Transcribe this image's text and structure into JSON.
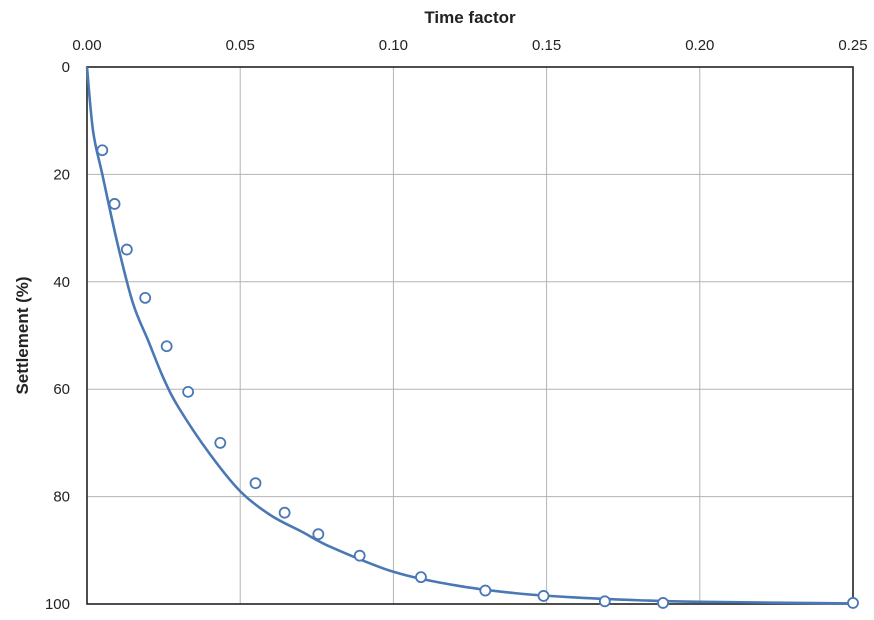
{
  "chart_data": {
    "type": "scatter",
    "title": "",
    "xlabel": "Time factor",
    "ylabel": "Settlement (%)",
    "x_axis_position": "top",
    "y_axis_inverted": true,
    "xlim": [
      0,
      0.25
    ],
    "ylim": [
      0,
      100
    ],
    "xticks": [
      0.0,
      0.05,
      0.1,
      0.15,
      0.2,
      0.25
    ],
    "xtick_labels": [
      "0.00",
      "0.05",
      "0.10",
      "0.15",
      "0.20",
      "0.25"
    ],
    "yticks": [
      0,
      20,
      40,
      60,
      80,
      100
    ],
    "ytick_labels": [
      "0",
      "20",
      "40",
      "60",
      "80",
      "100"
    ],
    "grid": true,
    "legend": "none",
    "colors": {
      "series": "#4a78b5",
      "grid": "#b3b3b3",
      "frame": "#222222"
    },
    "series": [
      {
        "kind": "points",
        "marker": "open-circle",
        "x": [
          0.005,
          0.009,
          0.013,
          0.019,
          0.026,
          0.033,
          0.0435,
          0.055,
          0.0645,
          0.0755,
          0.089,
          0.109,
          0.13,
          0.149,
          0.169,
          0.188,
          0.25
        ],
        "y": [
          15.5,
          25.5,
          34,
          43,
          52,
          60.5,
          70,
          77.5,
          83,
          87,
          91,
          95,
          97.5,
          98.5,
          99.5,
          99.8,
          99.8
        ]
      },
      {
        "kind": "line",
        "smooth": true,
        "x": [
          0,
          0.002,
          0.005,
          0.01,
          0.015,
          0.02,
          0.025,
          0.03,
          0.04,
          0.05,
          0.06,
          0.07,
          0.08,
          0.1,
          0.12,
          0.14,
          0.16,
          0.18,
          0.2,
          0.25
        ],
        "y": [
          0,
          12,
          20,
          33,
          44,
          51,
          58,
          63.5,
          72,
          79,
          83.5,
          86.5,
          89.5,
          94,
          96.5,
          98,
          98.8,
          99.3,
          99.6,
          99.9
        ]
      }
    ]
  }
}
